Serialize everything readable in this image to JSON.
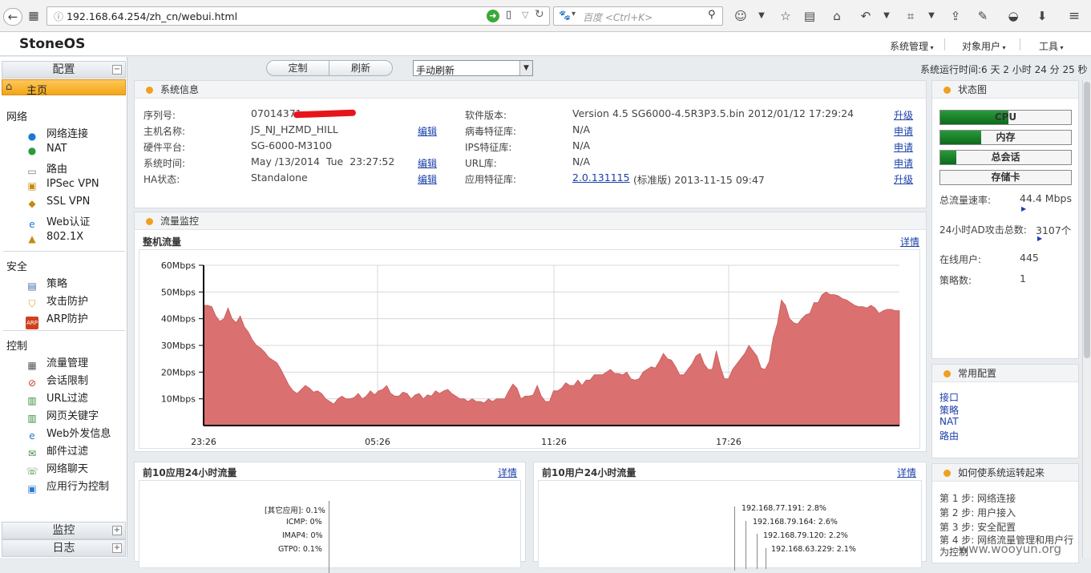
{
  "browser": {
    "url": "192.168.64.254/zh_cn/webui.html",
    "search_placeholder": "百度 <Ctrl+K>"
  },
  "app": {
    "brand": "StoneOS",
    "menus": [
      "系统管理",
      "对象用户",
      "工具"
    ],
    "uptime": "系统运行时间:6 天 2 小时 24 分 25 秒"
  },
  "toolbar": {
    "customize": "定制",
    "refresh": "刷新",
    "refresh_mode": "手动刷新"
  },
  "nav": {
    "config_header": "配置",
    "home": "主页",
    "sections": [
      {
        "title": "网络",
        "items": [
          "网络连接",
          "NAT",
          "路由",
          "IPSec VPN",
          "SSL VPN",
          "Web认证",
          "802.1X"
        ]
      },
      {
        "title": "安全",
        "items": [
          "策略",
          "攻击防护",
          "ARP防护"
        ]
      },
      {
        "title": "控制",
        "items": [
          "流量管理",
          "会话限制",
          "URL过滤",
          "网页关键字",
          "Web外发信息",
          "邮件过滤",
          "网络聊天",
          "应用行为控制"
        ]
      }
    ],
    "monitor_header": "监控",
    "log_header": "日志"
  },
  "sysinfo": {
    "title": "系统信息",
    "left": [
      {
        "label": "序列号:",
        "value": "07014371",
        "link": ""
      },
      {
        "label": "主机名称:",
        "value": "JS_NJ_HZMD_HILL",
        "link": "编辑"
      },
      {
        "label": "硬件平台:",
        "value": "SG-6000-M3100",
        "link": ""
      },
      {
        "label": "系统时间:",
        "value": "May /13/2014  Tue  23:27:52",
        "link": "编辑"
      },
      {
        "label": "HA状态:",
        "value": "Standalone",
        "link": "编辑"
      }
    ],
    "right": [
      {
        "label": "软件版本:",
        "value": "Version 4.5 SG6000-4.5R3P3.5.bin 2012/01/12 17:29:24",
        "link": "升级"
      },
      {
        "label": "病毒特征库:",
        "value": "N/A",
        "link": "申请"
      },
      {
        "label": "IPS特征库:",
        "value": "N/A",
        "link": "申请"
      },
      {
        "label": "URL库:",
        "value": "N/A",
        "link": "申请"
      },
      {
        "label": "应用特征库:",
        "value": "(标准版) 2013-11-15 09:47",
        "link": "升级",
        "version_link": "2.0.131115"
      }
    ]
  },
  "traffic": {
    "title": "流量监控",
    "subtitle": "整机流量",
    "detail": "详情"
  },
  "chart_data": {
    "type": "area",
    "title": "整机流量",
    "yticks": [
      "10Mbps",
      "20Mbps",
      "30Mbps",
      "40Mbps",
      "50Mbps",
      "60Mbps"
    ],
    "ylim": [
      0,
      60
    ],
    "xticks": [
      "23:26",
      "05:26",
      "11:26",
      "17:26"
    ],
    "color": "#db7070",
    "values": [
      45,
      45,
      44.5,
      41,
      39,
      40,
      44,
      40,
      38.5,
      41,
      37,
      35,
      32,
      30,
      29,
      27.5,
      25.5,
      24.5,
      23.5,
      21,
      18,
      15,
      13,
      12,
      13.5,
      15,
      14,
      12.5,
      13,
      12,
      10,
      9,
      8,
      10,
      11,
      10,
      10,
      10.5,
      12,
      10,
      11,
      13,
      11.5,
      13,
      13.5,
      15,
      12,
      11,
      11,
      12.5,
      12,
      10,
      11.5,
      12,
      10,
      11.5,
      11,
      13,
      12,
      13,
      13.5,
      12,
      11,
      10,
      10,
      9,
      10,
      9,
      9,
      8.5,
      10,
      9,
      10,
      10,
      10,
      13,
      15.5,
      14,
      10,
      11,
      11,
      11.5,
      15,
      11,
      9,
      9,
      13,
      13,
      14,
      16,
      15,
      15,
      17,
      15,
      17,
      17,
      19,
      19,
      19,
      20,
      21,
      19.5,
      19.5,
      19,
      20,
      17.5,
      17,
      17.5,
      20,
      21,
      22,
      21.5,
      24,
      27,
      25,
      24.5,
      22,
      19,
      19,
      21,
      23,
      26,
      27,
      23,
      21,
      21,
      28,
      22,
      17.5,
      17.5,
      21,
      23,
      25,
      27,
      30,
      28,
      26,
      21.5,
      21,
      24,
      33,
      38,
      47,
      45,
      40,
      38.5,
      38,
      40,
      41.5,
      42,
      46,
      46,
      49,
      50,
      49,
      49,
      48.5,
      47.5,
      47,
      46,
      45,
      44.5,
      44.5,
      44,
      45,
      44,
      42,
      43,
      43.5,
      43.5,
      43,
      43
    ]
  },
  "top_apps": {
    "title": "前10应用24小时流量",
    "detail": "详情",
    "labels": [
      "[其它应用]: 0.1%",
      "ICMP: 0%",
      "IMAP4: 0%",
      "GTP0: 0.1%"
    ]
  },
  "top_users": {
    "title": "前10用户24小时流量",
    "detail": "详情",
    "labels": [
      "192.168.77.191: 2.8%",
      "192.168.79.164: 2.6%",
      "192.168.79.120: 2.2%",
      "192.168.63.229: 2.1%"
    ]
  },
  "status": {
    "title": "状态图",
    "bars": [
      {
        "label": "CPU",
        "level": 0.52
      },
      {
        "label": "内存",
        "level": 0.31
      },
      {
        "label": "总会话",
        "level": 0.12
      },
      {
        "label": "存储卡",
        "level": 0
      }
    ],
    "stats": [
      {
        "label": "总流量速率:",
        "value": "44.4 Mbps"
      },
      {
        "label": "24小时AD攻击总数:",
        "value": "3107个"
      },
      {
        "label": "在线用户:",
        "value": "445"
      },
      {
        "label": "策略数:",
        "value": "1"
      }
    ]
  },
  "common": {
    "title": "常用配置",
    "links": [
      "接口",
      "策略",
      "NAT",
      "路由"
    ]
  },
  "howto": {
    "title": "如何使系统运转起来",
    "steps": [
      "第 1 步: 网络连接",
      "第 2 步: 用户接入",
      "第 3 步: 安全配置",
      "第 4 步: 网络流量管理和用户行为控制"
    ]
  },
  "watermark": "www.wooyun.org"
}
